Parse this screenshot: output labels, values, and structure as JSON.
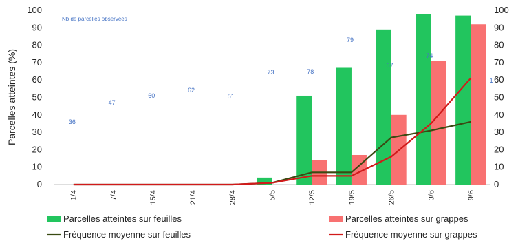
{
  "chart_data": {
    "type": "bar",
    "categories": [
      "1/4",
      "7/4",
      "15/4",
      "21/4",
      "28/4",
      "5/5",
      "12/5",
      "19/5",
      "26/5",
      "3/6",
      "9/6"
    ],
    "ylabel": "Parcelles atteintes (%)",
    "ylim": [
      0,
      100
    ],
    "y2lim": [
      0,
      100
    ],
    "yticks": [
      0,
      10,
      20,
      30,
      40,
      50,
      60,
      70,
      80,
      90,
      100
    ],
    "grid": false,
    "legend_position": "bottom",
    "note": "Nb de parcelles observées",
    "parcel_counts": [
      {
        "label": "36",
        "category": "1/4"
      },
      {
        "label": "47",
        "category": "7/4"
      },
      {
        "label": "60",
        "category": "15/4"
      },
      {
        "label": "62",
        "category": "21/4"
      },
      {
        "label": "51",
        "category": "28/4"
      },
      {
        "label": "73",
        "category": "5/5"
      },
      {
        "label": "78",
        "category": "12/5"
      },
      {
        "label": "79",
        "category": "19/5"
      },
      {
        "label": "67",
        "category": "26/5"
      },
      {
        "label": "74",
        "category": "3/6"
      },
      {
        "label": "1",
        "category": "9/6"
      }
    ],
    "series": [
      {
        "name": "Parcelles atteintes sur feuilles",
        "kind": "bar",
        "color": "#22c55e",
        "values": [
          0,
          0,
          0,
          0,
          0,
          4,
          51,
          67,
          89,
          98,
          97
        ]
      },
      {
        "name": "Parcelles atteintes sur grappes",
        "kind": "bar",
        "color": "#f87171",
        "values": [
          0,
          0,
          0,
          0,
          0,
          0,
          14,
          17,
          40,
          71,
          92
        ]
      },
      {
        "name": "Fréquence moyenne sur feuilles",
        "kind": "line",
        "color": "#3a4a12",
        "values": [
          0,
          0,
          0,
          0,
          0,
          1,
          7,
          7,
          27,
          31,
          36
        ]
      },
      {
        "name": "Fréquence moyenne sur grappes",
        "kind": "line",
        "color": "#d11a1a",
        "values": [
          0,
          0,
          0,
          0,
          0,
          1,
          5,
          5,
          16,
          35,
          61
        ]
      }
    ]
  }
}
